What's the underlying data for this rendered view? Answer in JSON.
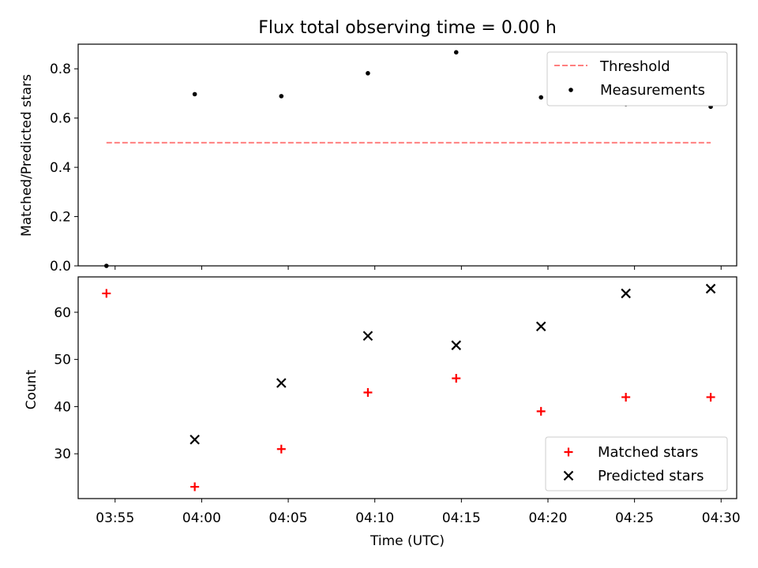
{
  "chart_data": [
    {
      "type": "scatter",
      "title": "Flux total observing time = 0.00 h",
      "xlabel": "",
      "ylabel": "Matched/Predicted stars",
      "ylim": [
        0,
        0.9
      ],
      "yticks": [
        "0.0",
        "0.2",
        "0.4",
        "0.6",
        "0.8"
      ],
      "x": [
        "03:54:30",
        "03:59:36",
        "04:04:36",
        "04:09:36",
        "04:14:42",
        "04:19:36",
        "04:24:30",
        "04:29:24"
      ],
      "series": [
        {
          "name": "Threshold",
          "kind": "line",
          "style": "dashed",
          "color": "#ff7f7f",
          "values": [
            0.5,
            0.5,
            0.5,
            0.5,
            0.5,
            0.5,
            0.5,
            0.5
          ]
        },
        {
          "name": "Measurements",
          "kind": "scatter",
          "marker": "dot",
          "color": "#000000",
          "values": [
            0.0,
            0.697,
            0.689,
            0.782,
            0.867,
            0.684,
            0.656,
            0.646
          ]
        }
      ],
      "legend": "top-right"
    },
    {
      "type": "scatter",
      "title": "",
      "xlabel": "Time (UTC)",
      "ylabel": "Count",
      "ylim": [
        20.5,
        67.5
      ],
      "yticks": [
        "30",
        "40",
        "50",
        "60"
      ],
      "xlim": [
        "03:52:52",
        "04:30:54"
      ],
      "xticks": [
        "03:55",
        "04:00",
        "04:05",
        "04:10",
        "04:15",
        "04:20",
        "04:25",
        "04:30"
      ],
      "x": [
        "03:54:30",
        "03:59:36",
        "04:04:36",
        "04:09:36",
        "04:14:42",
        "04:19:36",
        "04:24:30",
        "04:29:24"
      ],
      "series": [
        {
          "name": "Matched stars",
          "kind": "scatter",
          "marker": "plus",
          "color": "#ff0000",
          "values": [
            64,
            23,
            31,
            43,
            46,
            39,
            42,
            42
          ]
        },
        {
          "name": "Predicted stars",
          "kind": "scatter",
          "marker": "x",
          "color": "#000000",
          "values": [
            null,
            33,
            45,
            55,
            53,
            57,
            64,
            65
          ]
        }
      ],
      "legend": "bottom-right"
    }
  ]
}
